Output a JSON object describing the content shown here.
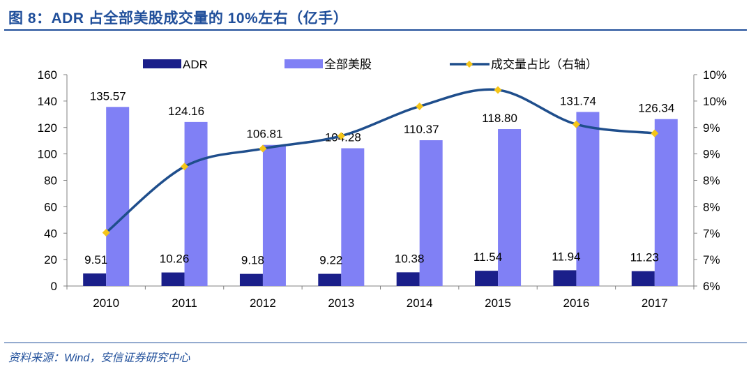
{
  "title": "图 8：ADR 占全部美股成交量的 10%左右（亿手）",
  "source": "资料来源：Wind，安信证券研究中心",
  "colors": {
    "adr": "#1a1f8a",
    "all_us": "#8080f5",
    "ratio_line": "#1f4e8c",
    "ratio_marker": "#f5c518",
    "title": "#1f4e9a"
  },
  "chart_data": {
    "type": "bar",
    "categories": [
      "2010",
      "2011",
      "2012",
      "2013",
      "2014",
      "2015",
      "2016",
      "2017"
    ],
    "series": [
      {
        "name": "ADR",
        "type": "bar",
        "axis": "left",
        "values": [
          9.51,
          10.26,
          9.18,
          9.22,
          10.38,
          11.54,
          11.94,
          11.23
        ],
        "labels": [
          "9.51",
          "10.26",
          "9.18",
          "9.22",
          "10.38",
          "11.54",
          "11.94",
          "11.23"
        ]
      },
      {
        "name": "全部美股",
        "type": "bar",
        "axis": "left",
        "values": [
          135.57,
          124.16,
          106.81,
          104.28,
          110.37,
          118.8,
          131.74,
          126.34
        ],
        "labels": [
          "135.57",
          "124.16",
          "106.81",
          "104.28",
          "110.37",
          "118.80",
          "131.74",
          "126.34"
        ]
      },
      {
        "name": "成交量占比（右轴）",
        "type": "line",
        "axis": "right",
        "values": [
          0.0701,
          0.0826,
          0.086,
          0.0884,
          0.094,
          0.0971,
          0.0906,
          0.0889
        ]
      }
    ],
    "ylim_left": [
      0,
      160
    ],
    "yticks_left": [
      0,
      20,
      40,
      60,
      80,
      100,
      120,
      140,
      160
    ],
    "ylim_right": [
      0.06,
      0.1
    ],
    "yticks_right": [
      0.06,
      0.065,
      0.07,
      0.075,
      0.08,
      0.085,
      0.09,
      0.095,
      0.1
    ],
    "yticklabels_right": [
      "6%",
      "7%",
      "7%",
      "8%",
      "8%",
      "9%",
      "9%",
      "10%",
      "10%"
    ],
    "legend": [
      "ADR",
      "全部美股",
      "成交量占比（右轴）"
    ],
    "legend_position": "top"
  }
}
